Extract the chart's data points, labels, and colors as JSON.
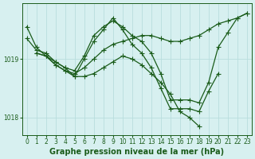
{
  "xlabel": "Graphe pression niveau de la mer (hPa)",
  "bg_color": "#d7f0f0",
  "grid_color": "#b8dede",
  "line_color": "#1a5c1a",
  "marker": "+",
  "markersize": 4,
  "linewidth": 0.9,
  "series": [
    {
      "x": [
        0,
        1,
        2,
        3,
        4,
        5,
        6,
        7,
        8,
        9,
        10,
        11,
        12,
        13,
        14,
        15,
        16,
        17,
        18,
        19,
        20,
        21,
        22,
        23
      ],
      "y": [
        1019.55,
        1019.2,
        1019.05,
        1018.9,
        1018.8,
        1018.75,
        1018.85,
        1019.0,
        1019.15,
        1019.25,
        1019.3,
        1019.35,
        1019.4,
        1019.4,
        1019.35,
        1019.3,
        1019.3,
        1019.35,
        1019.4,
        1019.5,
        1019.6,
        1019.65,
        1019.7,
        1019.78
      ]
    },
    {
      "x": [
        0,
        1,
        2,
        3,
        4,
        5,
        6,
        7,
        8,
        9,
        10,
        11,
        12,
        13,
        14,
        15,
        16,
        17,
        18,
        19,
        20,
        21,
        22,
        23
      ],
      "y": [
        1019.35,
        1019.15,
        1019.1,
        1018.95,
        1018.85,
        1018.8,
        1019.05,
        1019.4,
        1019.55,
        1019.65,
        1019.55,
        1019.4,
        1019.3,
        1019.1,
        1018.75,
        1018.3,
        1018.3,
        1018.3,
        1018.25,
        1018.6,
        1019.2,
        1019.45,
        1019.7,
        1019.78
      ]
    },
    {
      "x": [
        1,
        2,
        3,
        4,
        5,
        6,
        7,
        8,
        9,
        10,
        11,
        12,
        13,
        14,
        15,
        16,
        17,
        18
      ],
      "y": [
        1019.1,
        1019.05,
        1018.95,
        1018.85,
        1018.7,
        1018.7,
        1018.75,
        1018.85,
        1018.95,
        1019.05,
        1019.0,
        1018.9,
        1018.75,
        1018.6,
        1018.4,
        1018.1,
        1018.0,
        1017.85
      ]
    },
    {
      "x": [
        1,
        2,
        3,
        4,
        5,
        6,
        7,
        8,
        9,
        10,
        11,
        12,
        13,
        14,
        15,
        16,
        17,
        18,
        19,
        20
      ],
      "y": [
        1019.1,
        1019.05,
        1018.9,
        1018.8,
        1018.7,
        1019.0,
        1019.3,
        1019.5,
        1019.7,
        1019.5,
        1019.25,
        1019.1,
        1018.85,
        1018.5,
        1018.15,
        1018.15,
        1018.15,
        1018.1,
        1018.45,
        1018.75
      ]
    }
  ],
  "xlim": [
    -0.5,
    23.5
  ],
  "ylim": [
    1017.7,
    1019.95
  ],
  "yticks": [
    1018.0,
    1019.0
  ],
  "xticks": [
    0,
    1,
    2,
    3,
    4,
    5,
    6,
    7,
    8,
    9,
    10,
    11,
    12,
    13,
    14,
    15,
    16,
    17,
    18,
    19,
    20,
    21,
    22,
    23
  ],
  "tick_fontsize": 5.5,
  "label_fontsize": 7
}
